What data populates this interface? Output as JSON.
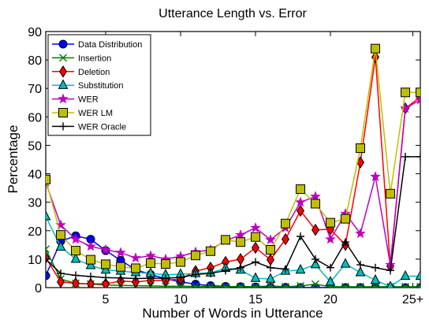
{
  "chart_data": {
    "type": "line",
    "title": "Utterance Length vs. Error",
    "xlabel": "Number of Words in Utterance",
    "ylabel": "Percentage",
    "xlim": [
      1,
      26
    ],
    "ylim": [
      0,
      90
    ],
    "xticks": [
      {
        "value": 5,
        "label": "5"
      },
      {
        "value": 10,
        "label": "10"
      },
      {
        "value": 15,
        "label": "15"
      },
      {
        "value": 20,
        "label": "20"
      },
      {
        "value": 25.5,
        "label": "25+"
      }
    ],
    "yticks": [
      0,
      10,
      20,
      30,
      40,
      50,
      60,
      70,
      80,
      90
    ],
    "grid": false,
    "legend_position": "top-left",
    "x": [
      1,
      2,
      3,
      4,
      5,
      6,
      7,
      8,
      9,
      10,
      11,
      12,
      13,
      14,
      15,
      16,
      17,
      18,
      19,
      20,
      21,
      22,
      23,
      24,
      25,
      26
    ],
    "series": [
      {
        "name": "Data Distribution",
        "color": "#0000ff",
        "marker": "circle",
        "values": [
          4.2,
          16.3,
          18.2,
          17.0,
          13.0,
          9.6,
          6.3,
          4.6,
          3.1,
          2.0,
          1.2,
          0.7,
          0.4,
          0.3,
          0.2,
          0.1,
          0.1,
          0.05,
          0.05,
          0.05,
          0.03,
          0.03,
          0.02,
          0.02,
          0.01,
          0.01
        ]
      },
      {
        "name": "Insertion",
        "color": "#008000",
        "marker": "x",
        "values": [
          13.5,
          3.0,
          1.5,
          1.2,
          0.9,
          0.8,
          0.7,
          0.6,
          0.5,
          0.5,
          0.4,
          0.4,
          0.3,
          0.4,
          0.3,
          0.6,
          0.3,
          0.6,
          1.2,
          0.3,
          0.3,
          0.3,
          0.3,
          0.3,
          0.3,
          0.3
        ]
      },
      {
        "name": "Deletion",
        "color": "#ff0000",
        "marker": "diamond",
        "values": [
          10.5,
          2.0,
          1.5,
          1.3,
          1.3,
          2.3,
          2.0,
          2.5,
          2.6,
          3.0,
          5.8,
          7.0,
          9.0,
          10.0,
          14.0,
          9.8,
          17.0,
          27.0,
          20.3,
          20.5,
          15.0,
          44.0,
          81.0,
          7.5,
          63.0,
          67.0
        ]
      },
      {
        "name": "Substitution",
        "color": "#00bfbf",
        "marker": "triangle",
        "values": [
          25.0,
          14.3,
          10.0,
          7.8,
          6.2,
          5.8,
          5.3,
          5.0,
          4.5,
          4.7,
          5.0,
          5.2,
          6.8,
          6.2,
          3.3,
          3.0,
          5.8,
          6.2,
          8.1,
          2.0,
          8.3,
          5.3,
          2.6,
          0.3,
          4.0,
          4.0
        ]
      },
      {
        "name": "WER",
        "color": "#bf00bf",
        "marker": "star",
        "values": [
          37.0,
          22.0,
          17.0,
          14.5,
          13.3,
          12.3,
          10.4,
          11.2,
          10.0,
          11.0,
          12.5,
          13.3,
          16.5,
          18.5,
          21.0,
          16.8,
          21.0,
          30.0,
          32.0,
          17.0,
          26.0,
          19.0,
          39.0,
          8.0,
          63.0,
          66.0
        ]
      },
      {
        "name": "WER LM",
        "color": "#bfbf00",
        "marker": "square",
        "values": [
          38.0,
          18.5,
          13.0,
          9.8,
          8.2,
          7.3,
          6.8,
          8.6,
          8.3,
          9.0,
          11.3,
          12.8,
          16.8,
          16.0,
          17.8,
          13.3,
          22.5,
          34.6,
          29.5,
          22.8,
          24.2,
          49.0,
          84.0,
          33.0,
          68.6,
          68.6
        ]
      },
      {
        "name": "WER Oracle",
        "color": "#000000",
        "marker": "plus",
        "values": [
          10.0,
          5.0,
          4.3,
          3.9,
          3.5,
          3.4,
          3.2,
          3.3,
          3.3,
          3.6,
          4.6,
          5.0,
          6.0,
          7.0,
          9.0,
          7.0,
          6.5,
          18.0,
          10.0,
          7.0,
          16.0,
          8.0,
          7.0,
          6.0,
          46.0,
          46.0
        ]
      }
    ]
  }
}
